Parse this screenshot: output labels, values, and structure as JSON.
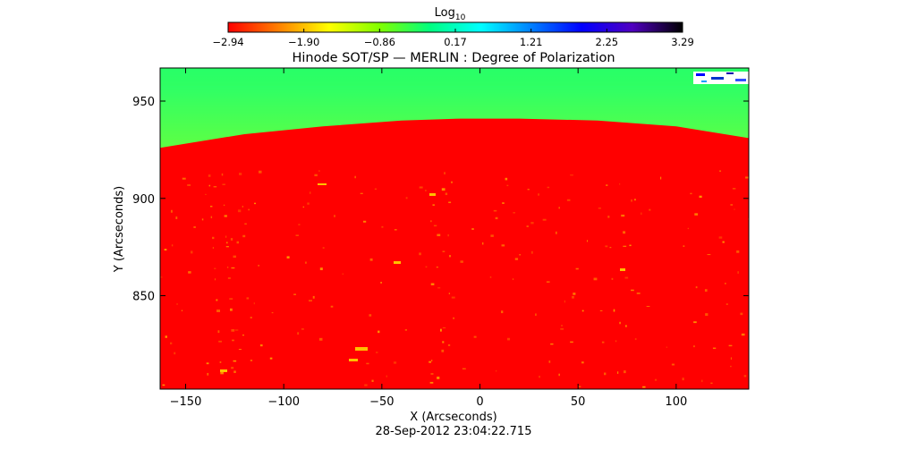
{
  "colorbar": {
    "label_main": "Log",
    "label_sub": "10",
    "ticks": [
      "-2.94",
      "-1.90",
      "-0.86",
      "0.17",
      "1.21",
      "2.25",
      "3.29"
    ],
    "range": [
      -2.94,
      3.29
    ],
    "colormap": [
      "#ff0000",
      "#ff8000",
      "#ffff00",
      "#80ff00",
      "#00ff80",
      "#00ffff",
      "#0080ff",
      "#0000ff",
      "#5000c0",
      "#000000"
    ]
  },
  "chart_data": {
    "type": "heatmap",
    "title": "Hinode SOT/SP — MERLIN : Degree of Polarization",
    "xlabel": "X (Arcseconds)",
    "ylabel": "Y (Arcseconds)",
    "xlim": [
      -163,
      137
    ],
    "ylim": [
      802,
      967
    ],
    "xticks": [
      -150,
      -100,
      -50,
      0,
      50,
      100
    ],
    "xtick_labels": [
      "−150",
      "−100",
      "−50",
      "0",
      "50",
      "100"
    ],
    "yticks": [
      850,
      900,
      950
    ],
    "ytick_labels": [
      "850",
      "900",
      "950"
    ],
    "limb": {
      "x": [
        -163,
        -120,
        -80,
        -40,
        -10,
        20,
        60,
        100,
        137
      ],
      "y": [
        926,
        933,
        937,
        940,
        941,
        941,
        940,
        937,
        931
      ]
    },
    "disk_value": -2.94,
    "off_limb_value_range": [
      -0.9,
      0.3
    ],
    "colors": {
      "disk": "#ff0000",
      "limb_edge": "#ffff00",
      "off_limb_top": "#20ff70"
    }
  },
  "footer": {
    "timestamp": "28-Sep-2012 23:04:22.715"
  }
}
